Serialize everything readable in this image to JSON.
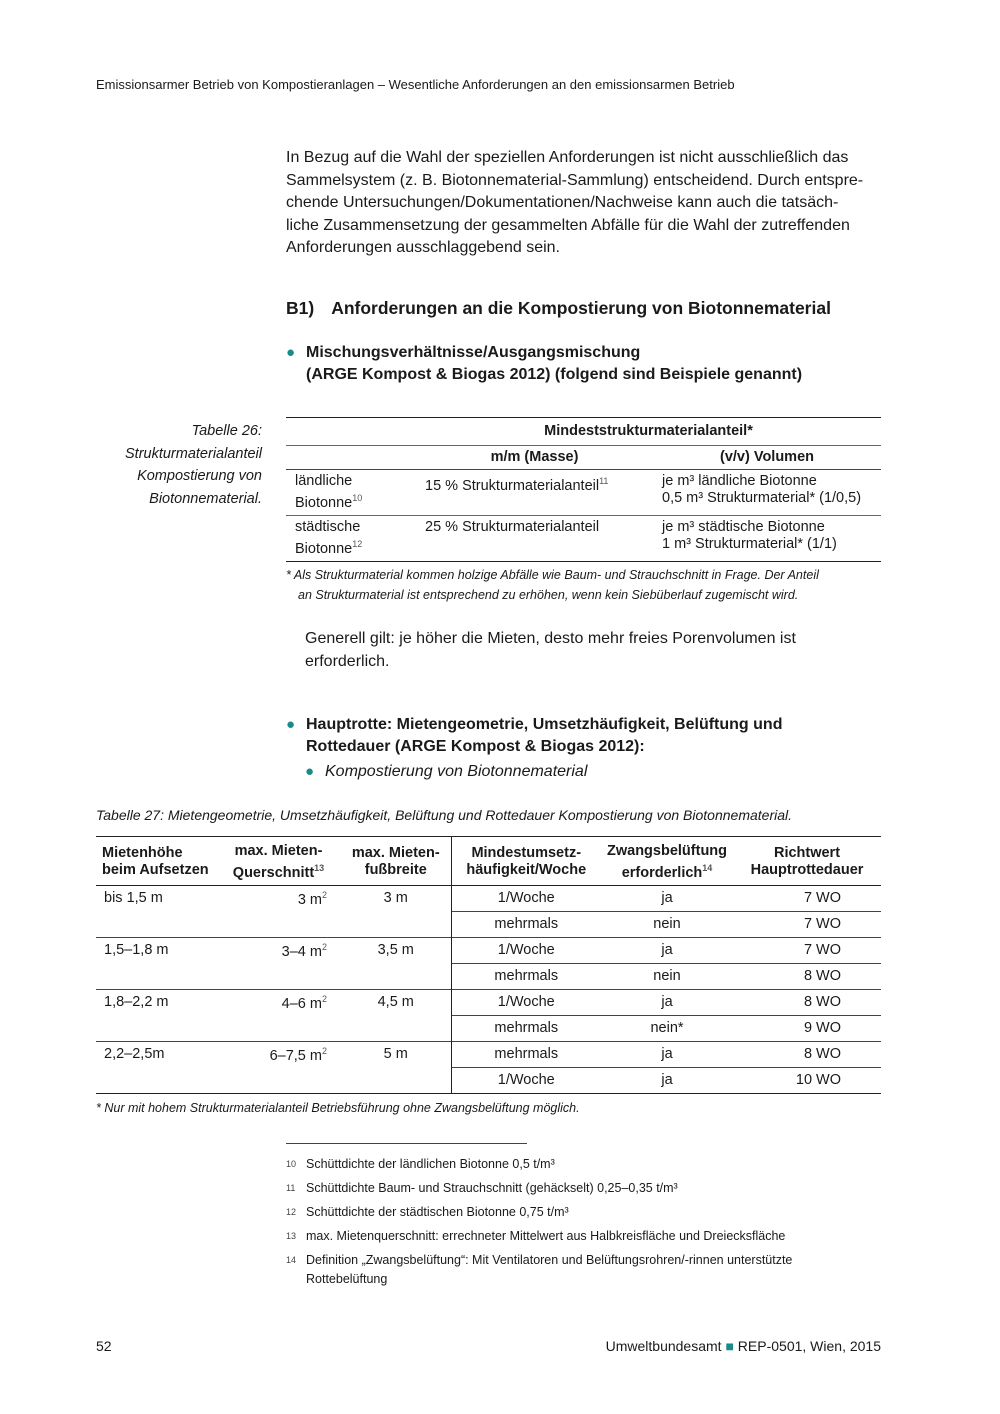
{
  "header": "Emissionsarmer Betrieb von Kompostieranlagen – Wesentliche Anforderungen an den emissionsarmen Betrieb",
  "intro": [
    "In Bezug auf die Wahl der speziellen Anforderungen ist nicht ausschließlich das",
    "Sammelsystem (z. B. Biotonnematerial-Sammlung) entscheidend. Durch entspre-",
    "chende Untersuchungen/Dokumentationen/Nachweise kann auch die tatsäch-",
    "liche Zusammensetzung der gesammelten Abfälle für die Wahl der zutreffenden",
    "Anforderungen ausschlaggebend sein."
  ],
  "section": {
    "num": "B1)",
    "title": "Anforderungen an die Kompostierung von Biotonnematerial"
  },
  "bullet1": [
    "Mischungsverhältnisse/Ausgangsmischung",
    "(ARGE Kompost & Biogas 2012) (folgend sind Beispiele genannt)"
  ],
  "table26": {
    "caption": [
      "Tabelle 26:",
      "Strukturmaterialanteil",
      "Kompostierung von",
      "Biotonnematerial."
    ],
    "group_header": "Mindeststrukturmaterialanteil*",
    "col_mass": "m/m (Masse)",
    "col_vol": "(v/v) Volumen",
    "rows": [
      {
        "type": [
          "ländliche",
          "Biotonne"
        ],
        "sup": "10",
        "mass": "15 % Strukturmaterialanteil",
        "mass_sup": "11",
        "vol": [
          "je m³ ländliche Biotonne",
          "0,5 m³ Strukturmaterial* (1/0,5)"
        ]
      },
      {
        "type": [
          "städtische",
          "Biotonne"
        ],
        "sup": "12",
        "mass": "25 % Strukturmaterialanteil",
        "mass_sup": "",
        "vol": [
          "je m³ städtische Biotonne",
          "1 m³ Strukturmaterial* (1/1)"
        ]
      }
    ],
    "note": [
      "* Als Strukturmaterial kommen holzige Abfälle wie Baum- und Strauchschnitt in Frage. Der Anteil",
      "an Strukturmaterial ist entsprechend zu erhöhen, wenn kein Siebüberlauf zugemischt wird."
    ]
  },
  "general": [
    "Generell gilt: je höher die Mieten, desto mehr freies Porenvolumen ist",
    "erforderlich."
  ],
  "bullet2": [
    "Hauptrotte: Mietengeometrie, Umsetzhäufigkeit, Belüftung und",
    "Rottedauer (ARGE Kompost & Biogas 2012):"
  ],
  "subbullet": "Kompostierung von Biotonnematerial",
  "table27": {
    "caption": "Tabelle 27: Mietengeometrie, Umsetzhäufigkeit, Belüftung und Rottedauer Kompostierung von Biotonnematerial.",
    "headers": [
      [
        "Mietenhöhe",
        "beim Aufsetzen",
        ""
      ],
      [
        "max. Mieten-",
        "Querschnitt",
        "13"
      ],
      [
        "max. Mieten-",
        "fußbreite",
        ""
      ],
      [
        "Mindestumsetz-",
        "häufigkeit/Woche",
        ""
      ],
      [
        "Zwangsbelüftung",
        "erforderlich",
        "14"
      ],
      [
        "Richtwert",
        "Hauptrottedauer",
        ""
      ]
    ],
    "groups": [
      {
        "height": "bis 1,5 m",
        "section": "3 m",
        "width": "3 m",
        "rows": [
          [
            "1/Woche",
            "ja",
            "7 WO"
          ],
          [
            "mehrmals",
            "nein",
            "7 WO"
          ]
        ]
      },
      {
        "height": "1,5–1,8 m",
        "section": "3–4 m",
        "width": "3,5 m",
        "rows": [
          [
            "1/Woche",
            "ja",
            "7 WO"
          ],
          [
            "mehrmals",
            "nein",
            "8 WO"
          ]
        ]
      },
      {
        "height": "1,8–2,2 m",
        "section": "4–6 m",
        "width": "4,5 m",
        "rows": [
          [
            "1/Woche",
            "ja",
            "8 WO"
          ],
          [
            "mehrmals",
            "nein*",
            "9 WO"
          ]
        ]
      },
      {
        "height": "2,2–2,5m",
        "section": "6–7,5 m",
        "width": "5 m",
        "rows": [
          [
            "mehrmals",
            "ja",
            "8 WO"
          ],
          [
            "1/Woche",
            "ja",
            "10 WO"
          ]
        ]
      }
    ],
    "sq": "2",
    "note": "* Nur mit hohem Strukturmaterialanteil Betriebsführung ohne Zwangsbelüftung möglich."
  },
  "footnotes": [
    {
      "n": "10",
      "text": [
        "Schüttdichte der ländlichen Biotonne 0,5 t/m³"
      ]
    },
    {
      "n": "11",
      "text": [
        "Schüttdichte Baum- und Strauchschnitt (gehäckselt) 0,25–0,35 t/m³"
      ]
    },
    {
      "n": "12",
      "text": [
        "Schüttdichte der städtischen Biotonne 0,75 t/m³"
      ]
    },
    {
      "n": "13",
      "text": [
        "max. Mietenquerschnitt: errechneter Mittelwert aus Halbkreisfläche und Dreiecksfläche"
      ]
    },
    {
      "n": "14",
      "text": [
        "Definition „Zwangsbelüftung“: Mit Ventilatoren und Belüftungsrohren/-rinnen unterstützte",
        "Rottebelüftung"
      ]
    }
  ],
  "footer": {
    "page": "52",
    "publisher": "Umweltbundesamt",
    "report": "REP-0501, Wien, 2015",
    "accent": "#1a8c87"
  }
}
